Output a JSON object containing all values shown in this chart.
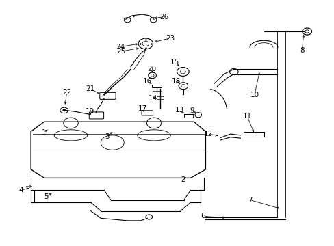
{
  "background_color": "#ffffff",
  "fig_width": 4.89,
  "fig_height": 3.6,
  "dpi": 100,
  "line_color": "#000000",
  "text_color": "#000000",
  "label_fontsize": 7.5
}
